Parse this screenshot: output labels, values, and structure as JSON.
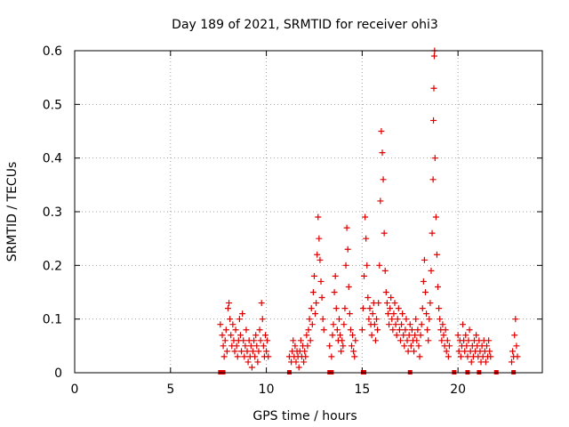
{
  "chart_data": {
    "type": "scatter",
    "title": "Day 189 of 2021, SRMTID for receiver ohi3",
    "xlabel": "GPS time / hours",
    "ylabel": "SRMTID / TECUs",
    "xlim": [
      0,
      24.4
    ],
    "ylim": [
      0,
      0.6
    ],
    "xticks": [
      0,
      5,
      10,
      15,
      20
    ],
    "xtick_labels": [
      "0",
      "5",
      "10",
      "15",
      "20"
    ],
    "yticks": [
      0,
      0.1,
      0.2,
      0.3,
      0.4,
      0.5,
      0.6
    ],
    "ytick_labels": [
      "0",
      "0.1",
      "0.2",
      "0.3",
      "0.4",
      "0.5",
      "0.6"
    ],
    "grid": true,
    "series": [
      {
        "name": "SRMTID",
        "marker": "plus",
        "color": "#e00000",
        "points": [
          [
            7.6,
            0.09
          ],
          [
            7.7,
            0.07
          ],
          [
            7.75,
            0.05
          ],
          [
            7.8,
            0.03
          ],
          [
            7.85,
            0.06
          ],
          [
            7.9,
            0.08
          ],
          [
            7.95,
            0.04
          ],
          [
            8.0,
            0.12
          ],
          [
            8.05,
            0.13
          ],
          [
            8.1,
            0.1
          ],
          [
            8.15,
            0.07
          ],
          [
            8.2,
            0.05
          ],
          [
            8.25,
            0.09
          ],
          [
            8.3,
            0.06
          ],
          [
            8.35,
            0.04
          ],
          [
            8.4,
            0.08
          ],
          [
            8.45,
            0.05
          ],
          [
            8.5,
            0.03
          ],
          [
            8.55,
            0.06
          ],
          [
            8.6,
            0.1
          ],
          [
            8.65,
            0.07
          ],
          [
            8.7,
            0.04
          ],
          [
            8.75,
            0.11
          ],
          [
            8.8,
            0.06
          ],
          [
            8.85,
            0.03
          ],
          [
            8.9,
            0.05
          ],
          [
            8.95,
            0.08
          ],
          [
            9.0,
            0.04
          ],
          [
            9.05,
            0.02
          ],
          [
            9.1,
            0.06
          ],
          [
            9.15,
            0.03
          ],
          [
            9.2,
            0.05
          ],
          [
            9.25,
            0.01
          ],
          [
            9.3,
            0.04
          ],
          [
            9.35,
            0.06
          ],
          [
            9.4,
            0.03
          ],
          [
            9.45,
            0.07
          ],
          [
            9.5,
            0.05
          ],
          [
            9.55,
            0.02
          ],
          [
            9.6,
            0.04
          ],
          [
            9.65,
            0.08
          ],
          [
            9.7,
            0.06
          ],
          [
            9.75,
            0.13
          ],
          [
            9.8,
            0.1
          ],
          [
            9.85,
            0.05
          ],
          [
            9.9,
            0.03
          ],
          [
            9.95,
            0.07
          ],
          [
            10.0,
            0.04
          ],
          [
            10.05,
            0.06
          ],
          [
            10.1,
            0.03
          ],
          [
            11.2,
            0.03
          ],
          [
            11.3,
            0.02
          ],
          [
            11.35,
            0.04
          ],
          [
            11.4,
            0.06
          ],
          [
            11.45,
            0.03
          ],
          [
            11.5,
            0.05
          ],
          [
            11.55,
            0.02
          ],
          [
            11.6,
            0.04
          ],
          [
            11.65,
            0.03
          ],
          [
            11.7,
            0.01
          ],
          [
            11.75,
            0.04
          ],
          [
            11.8,
            0.06
          ],
          [
            11.85,
            0.03
          ],
          [
            11.9,
            0.05
          ],
          [
            11.95,
            0.02
          ],
          [
            12.0,
            0.04
          ],
          [
            12.05,
            0.03
          ],
          [
            12.1,
            0.07
          ],
          [
            12.15,
            0.05
          ],
          [
            12.2,
            0.08
          ],
          [
            12.25,
            0.1
          ],
          [
            12.3,
            0.06
          ],
          [
            12.35,
            0.12
          ],
          [
            12.4,
            0.09
          ],
          [
            12.45,
            0.15
          ],
          [
            12.5,
            0.18
          ],
          [
            12.55,
            0.11
          ],
          [
            12.6,
            0.13
          ],
          [
            12.65,
            0.22
          ],
          [
            12.7,
            0.29
          ],
          [
            12.75,
            0.25
          ],
          [
            12.8,
            0.21
          ],
          [
            12.85,
            0.17
          ],
          [
            12.9,
            0.14
          ],
          [
            12.95,
            0.1
          ],
          [
            13.0,
            0.08
          ],
          [
            13.3,
            0.05
          ],
          [
            13.4,
            0.03
          ],
          [
            13.45,
            0.07
          ],
          [
            13.5,
            0.09
          ],
          [
            13.55,
            0.15
          ],
          [
            13.6,
            0.18
          ],
          [
            13.65,
            0.12
          ],
          [
            13.7,
            0.08
          ],
          [
            13.75,
            0.06
          ],
          [
            13.8,
            0.1
          ],
          [
            13.85,
            0.07
          ],
          [
            13.9,
            0.04
          ],
          [
            13.95,
            0.06
          ],
          [
            14.0,
            0.05
          ],
          [
            14.05,
            0.09
          ],
          [
            14.1,
            0.12
          ],
          [
            14.15,
            0.2
          ],
          [
            14.2,
            0.27
          ],
          [
            14.25,
            0.23
          ],
          [
            14.3,
            0.16
          ],
          [
            14.35,
            0.11
          ],
          [
            14.4,
            0.08
          ],
          [
            14.45,
            0.05
          ],
          [
            14.5,
            0.07
          ],
          [
            14.55,
            0.04
          ],
          [
            14.6,
            0.03
          ],
          [
            14.65,
            0.06
          ],
          [
            15.0,
            0.08
          ],
          [
            15.05,
            0.12
          ],
          [
            15.1,
            0.18
          ],
          [
            15.15,
            0.29
          ],
          [
            15.2,
            0.25
          ],
          [
            15.25,
            0.2
          ],
          [
            15.3,
            0.14
          ],
          [
            15.35,
            0.1
          ],
          [
            15.4,
            0.12
          ],
          [
            15.45,
            0.09
          ],
          [
            15.5,
            0.07
          ],
          [
            15.55,
            0.11
          ],
          [
            15.6,
            0.13
          ],
          [
            15.65,
            0.09
          ],
          [
            15.7,
            0.06
          ],
          [
            15.75,
            0.1
          ],
          [
            15.8,
            0.08
          ],
          [
            15.85,
            0.13
          ],
          [
            15.9,
            0.2
          ],
          [
            15.95,
            0.32
          ],
          [
            16.0,
            0.45
          ],
          [
            16.05,
            0.41
          ],
          [
            16.1,
            0.36
          ],
          [
            16.15,
            0.26
          ],
          [
            16.2,
            0.19
          ],
          [
            16.25,
            0.15
          ],
          [
            16.3,
            0.13
          ],
          [
            16.35,
            0.11
          ],
          [
            16.4,
            0.09
          ],
          [
            16.45,
            0.12
          ],
          [
            16.5,
            0.14
          ],
          [
            16.55,
            0.1
          ],
          [
            16.6,
            0.08
          ],
          [
            16.65,
            0.11
          ],
          [
            16.7,
            0.13
          ],
          [
            16.75,
            0.09
          ],
          [
            16.8,
            0.07
          ],
          [
            16.85,
            0.1
          ],
          [
            16.9,
            0.12
          ],
          [
            16.95,
            0.08
          ],
          [
            17.0,
            0.06
          ],
          [
            17.05,
            0.09
          ],
          [
            17.1,
            0.11
          ],
          [
            17.15,
            0.07
          ],
          [
            17.2,
            0.05
          ],
          [
            17.25,
            0.08
          ],
          [
            17.3,
            0.1
          ],
          [
            17.35,
            0.06
          ],
          [
            17.4,
            0.04
          ],
          [
            17.45,
            0.07
          ],
          [
            17.5,
            0.09
          ],
          [
            17.55,
            0.05
          ],
          [
            17.6,
            0.08
          ],
          [
            17.65,
            0.06
          ],
          [
            17.7,
            0.04
          ],
          [
            17.75,
            0.07
          ],
          [
            17.8,
            0.1
          ],
          [
            17.85,
            0.06
          ],
          [
            17.9,
            0.08
          ],
          [
            17.95,
            0.05
          ],
          [
            18.0,
            0.03
          ],
          [
            18.05,
            0.07
          ],
          [
            18.1,
            0.09
          ],
          [
            18.15,
            0.12
          ],
          [
            18.2,
            0.17
          ],
          [
            18.25,
            0.21
          ],
          [
            18.3,
            0.15
          ],
          [
            18.35,
            0.11
          ],
          [
            18.4,
            0.08
          ],
          [
            18.45,
            0.06
          ],
          [
            18.5,
            0.1
          ],
          [
            18.55,
            0.13
          ],
          [
            18.6,
            0.19
          ],
          [
            18.65,
            0.26
          ],
          [
            18.7,
            0.36
          ],
          [
            18.72,
            0.47
          ],
          [
            18.74,
            0.53
          ],
          [
            18.76,
            0.59
          ],
          [
            18.78,
            0.6
          ],
          [
            18.8,
            0.4
          ],
          [
            18.85,
            0.29
          ],
          [
            18.9,
            0.22
          ],
          [
            18.95,
            0.16
          ],
          [
            19.0,
            0.12
          ],
          [
            19.05,
            0.1
          ],
          [
            19.1,
            0.08
          ],
          [
            19.15,
            0.06
          ],
          [
            19.2,
            0.09
          ],
          [
            19.25,
            0.07
          ],
          [
            19.3,
            0.05
          ],
          [
            19.35,
            0.08
          ],
          [
            19.4,
            0.04
          ],
          [
            19.45,
            0.06
          ],
          [
            19.5,
            0.03
          ],
          [
            19.55,
            0.05
          ],
          [
            20.0,
            0.07
          ],
          [
            20.05,
            0.04
          ],
          [
            20.1,
            0.06
          ],
          [
            20.15,
            0.03
          ],
          [
            20.2,
            0.05
          ],
          [
            20.25,
            0.09
          ],
          [
            20.3,
            0.06
          ],
          [
            20.35,
            0.04
          ],
          [
            20.4,
            0.07
          ],
          [
            20.45,
            0.05
          ],
          [
            20.5,
            0.03
          ],
          [
            20.55,
            0.06
          ],
          [
            20.6,
            0.08
          ],
          [
            20.65,
            0.04
          ],
          [
            20.7,
            0.02
          ],
          [
            20.75,
            0.05
          ],
          [
            20.8,
            0.03
          ],
          [
            20.85,
            0.06
          ],
          [
            20.9,
            0.04
          ],
          [
            20.95,
            0.07
          ],
          [
            21.0,
            0.05
          ],
          [
            21.05,
            0.03
          ],
          [
            21.1,
            0.06
          ],
          [
            21.15,
            0.04
          ],
          [
            21.2,
            0.02
          ],
          [
            21.25,
            0.05
          ],
          [
            21.3,
            0.03
          ],
          [
            21.35,
            0.06
          ],
          [
            21.4,
            0.04
          ],
          [
            21.45,
            0.02
          ],
          [
            21.5,
            0.05
          ],
          [
            21.55,
            0.03
          ],
          [
            21.6,
            0.06
          ],
          [
            21.65,
            0.04
          ],
          [
            21.7,
            0.03
          ],
          [
            22.8,
            0.02
          ],
          [
            22.85,
            0.04
          ],
          [
            22.9,
            0.03
          ],
          [
            22.95,
            0.07
          ],
          [
            23.0,
            0.1
          ],
          [
            23.05,
            0.05
          ],
          [
            23.1,
            0.03
          ]
        ],
        "baseline_markers": [
          7.6,
          7.65,
          7.75,
          11.2,
          13.3,
          13.4,
          15.05,
          15.1,
          17.5,
          19.8,
          20.5,
          21.1,
          22.0,
          22.9
        ]
      }
    ]
  }
}
